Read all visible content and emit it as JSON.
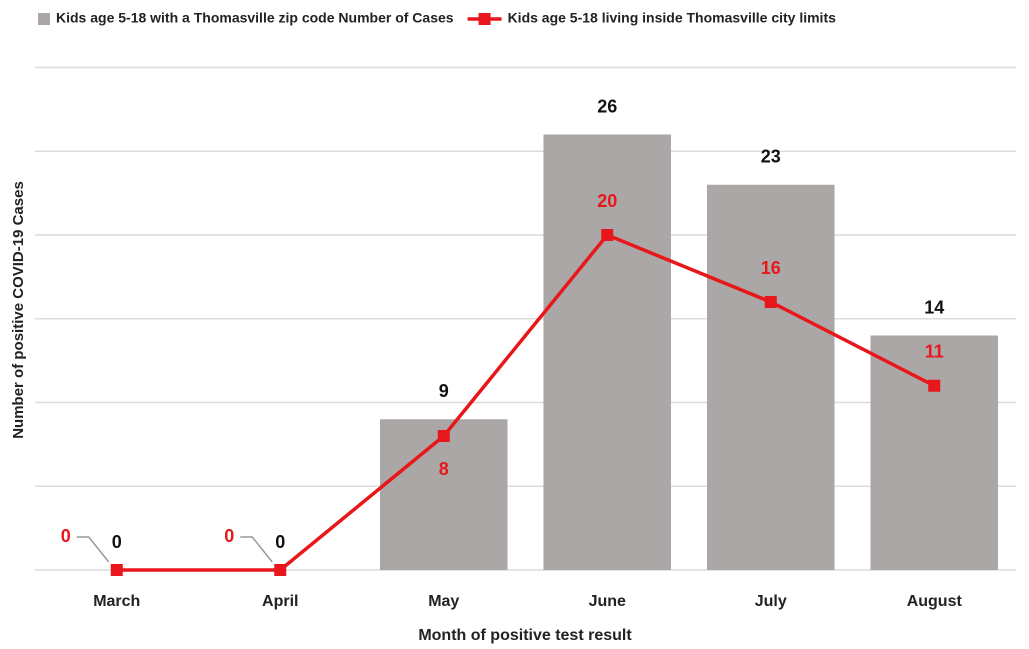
{
  "chart_data": {
    "type": "bar",
    "categories": [
      "March",
      "April",
      "May",
      "June",
      "July",
      "August"
    ],
    "series": [
      {
        "name": "Kids age 5-18 with a Thomasville zip code Number of Cases",
        "type": "bar",
        "color": "#aba7a6",
        "values": [
          0,
          0,
          9,
          26,
          23,
          14
        ]
      },
      {
        "name": "Kids age 5-18 living inside Thomasville city limits",
        "type": "line",
        "color": "#e8171b",
        "values": [
          0,
          0,
          8,
          20,
          16,
          11
        ]
      }
    ],
    "xlabel": "Month of positive test result",
    "ylabel": "Number of positive COVID-19 Cases",
    "ylim": [
      0,
      30
    ],
    "yticks": [
      0,
      5,
      10,
      15,
      20,
      25,
      30
    ],
    "ytick_labels": false,
    "grid": true,
    "legend": "top"
  }
}
